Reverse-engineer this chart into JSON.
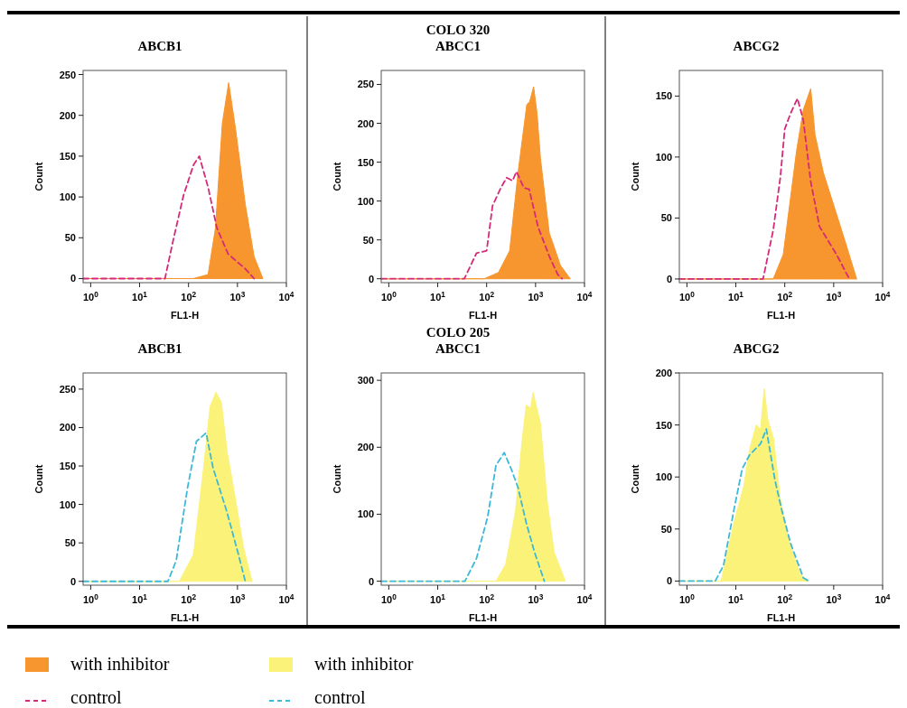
{
  "chart_data": [
    {
      "type": "line",
      "title": "ABCB1",
      "xlabel": "FL1-H",
      "ylabel": "Count",
      "log": "x",
      "xlim": [
        0.7,
        10000
      ],
      "ylim": [
        -5,
        255
      ],
      "xticks": [
        {
          "value": 1,
          "label": "10$^{0}$"
        },
        {
          "value": 10,
          "label": "10$^{1}$"
        },
        {
          "value": 100,
          "label": "10$^{2}$"
        },
        {
          "value": 1000,
          "label": "10$^{3}$"
        },
        {
          "value": 10000,
          "label": "10$^{4}$"
        }
      ],
      "yticks": [
        0,
        50,
        100,
        150,
        200,
        250
      ],
      "legend": "bottom",
      "series": [
        {
          "name": "with inhibitor",
          "type": "area",
          "color": "#f7962f",
          "x": [
            0.7,
            126,
            251,
            355,
            490,
            661,
            912,
            1445,
            2188,
            3311
          ],
          "values": [
            0,
            0,
            5,
            62,
            190,
            240,
            184,
            91,
            27,
            0
          ]
        },
        {
          "name": "control",
          "line_style": "dashed",
          "color": "#d6297a",
          "x": [
            0.7,
            33,
            49,
            79,
            126,
            166,
            251,
            380,
            646,
            1445,
            2188
          ],
          "values": [
            0,
            0,
            48,
            102,
            139,
            150,
            112,
            62,
            30,
            12,
            0
          ]
        }
      ]
    },
    {
      "type": "line",
      "title": "COLO 320",
      "subtitle": "ABCC1",
      "xlabel": "FL1-H",
      "ylabel": "Count",
      "log": "x",
      "xlim": [
        0.7,
        10000
      ],
      "ylim": [
        -5,
        268
      ],
      "xticks": [
        {
          "value": 1,
          "label": "10$^{0}$"
        },
        {
          "value": 10,
          "label": "10$^{1}$"
        },
        {
          "value": 100,
          "label": "10$^{2}$"
        },
        {
          "value": 1000,
          "label": "10$^{3}$"
        },
        {
          "value": 10000,
          "label": "10$^{4}$"
        }
      ],
      "yticks": [
        0,
        50,
        100,
        150,
        200,
        250
      ],
      "series": [
        {
          "type": "area",
          "color": "#f7962f",
          "x": [
            0.7,
            89,
            174,
            295,
            437,
            661,
            759,
            912,
            1072,
            1259,
            1905,
            3236,
            5129
          ],
          "values": [
            0,
            0,
            8,
            36,
            136,
            224,
            228,
            247,
            213,
            155,
            59,
            17,
            0
          ]
        },
        {
          "line_style": "dashed",
          "color": "#d6297a",
          "x": [
            0.7,
            35,
            62,
            100,
            132,
            195,
            257,
            339,
            407,
            575,
            741,
            1122,
            1905,
            2818,
            3467
          ],
          "values": [
            0,
            0,
            33,
            36,
            94,
            117,
            130,
            126,
            138,
            117,
            115,
            67,
            29,
            6,
            0
          ]
        }
      ]
    },
    {
      "type": "line",
      "title": "ABCG2",
      "xlabel": "FL1-H",
      "ylabel": "Count",
      "log": "x",
      "xlim": [
        0.7,
        10000
      ],
      "ylim": [
        -3,
        171
      ],
      "xticks": [
        {
          "value": 1,
          "label": "10$^{0}$"
        },
        {
          "value": 10,
          "label": "10$^{1}$"
        },
        {
          "value": 100,
          "label": "10$^{2}$"
        },
        {
          "value": 1000,
          "label": "10$^{3}$"
        },
        {
          "value": 10000,
          "label": "10$^{4}$"
        }
      ],
      "yticks": [
        0,
        50,
        100,
        150
      ],
      "series": [
        {
          "type": "area",
          "color": "#f7962f",
          "x": [
            0.7,
            58,
            93,
            174,
            240,
            339,
            417,
            617,
            1148,
            1738,
            2951
          ],
          "values": [
            0,
            0,
            20,
            105,
            139,
            156,
            118,
            87,
            53,
            30,
            0
          ]
        },
        {
          "line_style": "dashed",
          "color": "#d6297a",
          "x": [
            0.7,
            36,
            58,
            81,
            100,
            132,
            182,
            240,
            339,
            513,
            1148,
            2089
          ],
          "values": [
            0,
            0,
            40,
            83,
            123,
            136,
            148,
            130,
            80,
            43,
            20,
            0
          ]
        }
      ]
    },
    {
      "type": "line",
      "title": "ABCB1",
      "xlabel": "FL1-H",
      "ylabel": "Count",
      "log": "x",
      "xlim": [
        0.7,
        10000
      ],
      "ylim": [
        -5,
        271
      ],
      "xticks": [
        {
          "value": 1,
          "label": "10$^{0}$"
        },
        {
          "value": 10,
          "label": "10$^{1}$"
        },
        {
          "value": 100,
          "label": "10$^{2}$"
        },
        {
          "value": 1000,
          "label": "10$^{3}$"
        },
        {
          "value": 10000,
          "label": "10$^{4}$"
        }
      ],
      "yticks": [
        0,
        50,
        100,
        150,
        200,
        250
      ],
      "legend": "bottom",
      "series": [
        {
          "name": "with inhibitor",
          "type": "area",
          "color": "#fbf27a",
          "x": [
            0.7,
            65,
            126,
            200,
            275,
            363,
            468,
            617,
            741,
            1349,
            1995
          ],
          "values": [
            0,
            0,
            35,
            144,
            227,
            246,
            233,
            168,
            140,
            42,
            0
          ]
        },
        {
          "name": "control",
          "line_style": "dashed",
          "color": "#3cb8d8",
          "x": [
            0.7,
            38,
            56,
            95,
            145,
            229,
            316,
            617,
            1047,
            1445
          ],
          "values": [
            0,
            0,
            27,
            121,
            182,
            193,
            148,
            89,
            35,
            0
          ]
        }
      ]
    },
    {
      "type": "line",
      "title": "COLO 205",
      "subtitle": "ABCC1",
      "xlabel": "FL1-H",
      "ylabel": "Count",
      "log": "x",
      "xlim": [
        0.7,
        10000
      ],
      "ylim": [
        -6,
        311
      ],
      "xticks": [
        {
          "value": 1,
          "label": "10$^{0}$"
        },
        {
          "value": 10,
          "label": "10$^{1}$"
        },
        {
          "value": 100,
          "label": "10$^{2}$"
        },
        {
          "value": 1000,
          "label": "10$^{3}$"
        },
        {
          "value": 10000,
          "label": "10$^{4}$"
        }
      ],
      "yticks": [
        0,
        100,
        200,
        300
      ],
      "series": [
        {
          "type": "area",
          "color": "#fbf27a",
          "x": [
            0.7,
            155,
            245,
            389,
            537,
            646,
            794,
            891,
            1259,
            1738,
            2399,
            4074
          ],
          "values": [
            0,
            0,
            25,
            105,
            214,
            263,
            258,
            282,
            236,
            118,
            43,
            0
          ]
        },
        {
          "line_style": "dashed",
          "color": "#3cb8d8",
          "x": [
            0.7,
            36,
            62,
            105,
            155,
            229,
            316,
            437,
            646,
            955,
            1514
          ],
          "values": [
            0,
            0,
            34,
            96,
            173,
            192,
            168,
            140,
            87,
            43,
            0
          ]
        }
      ]
    },
    {
      "type": "line",
      "title": "ABCG2",
      "xlabel": "FL1-H",
      "ylabel": "Count",
      "log": "x",
      "xlim": [
        0.7,
        10000
      ],
      "ylim": [
        -4,
        200
      ],
      "xticks": [
        {
          "value": 1,
          "label": "10$^{0}$"
        },
        {
          "value": 10,
          "label": "10$^{1}$"
        },
        {
          "value": 100,
          "label": "10$^{2}$"
        },
        {
          "value": 1000,
          "label": "10$^{3}$"
        },
        {
          "value": 10000,
          "label": "10$^{4}$"
        }
      ],
      "yticks": [
        0,
        50,
        100,
        150,
        200
      ],
      "series": [
        {
          "type": "area",
          "color": "#fbf27a",
          "x": [
            0.7,
            5.0,
            9.1,
            14.5,
            19,
            26,
            32,
            38,
            45,
            59,
            81,
            123,
            209,
            309
          ],
          "values": [
            0,
            0,
            56,
            91,
            126,
            150,
            146,
            185,
            155,
            137,
            79,
            38,
            6,
            0
          ]
        },
        {
          "line_style": "dashed",
          "color": "#3cb8d8",
          "x": [
            0.7,
            3.8,
            5.6,
            9.1,
            13.5,
            19,
            32,
            42,
            63,
            87,
            132,
            240,
            309
          ],
          "values": [
            0,
            0,
            15,
            68,
            108,
            121,
            132,
            146,
            97,
            68,
            36,
            3,
            0
          ]
        }
      ]
    }
  ]
}
